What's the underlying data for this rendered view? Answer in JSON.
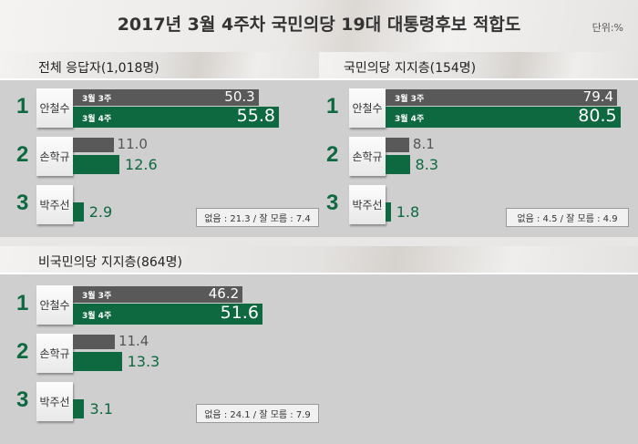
{
  "title": "2017년 3월 4주차 국민의당 19대 대통령후보 적합도",
  "unit": "단위:%",
  "chart_data": [
    {
      "type": "bar",
      "title": "전체 응답자(1,018명)",
      "series_names": [
        "3월 3주",
        "3월 4주"
      ],
      "rows": [
        {
          "rank": "1",
          "name": "안철수",
          "prev": "50.3",
          "curr": "55.8"
        },
        {
          "rank": "2",
          "name": "손학규",
          "prev": "11.0",
          "curr": "12.6"
        },
        {
          "rank": "3",
          "name": "박주선",
          "prev": null,
          "curr": "2.9"
        }
      ],
      "note": "없음 : 21.3 / 잘 모름 : 7.4"
    },
    {
      "type": "bar",
      "title": "국민의당 지지층(154명)",
      "series_names": [
        "3월 3주",
        "3월 4주"
      ],
      "rows": [
        {
          "rank": "1",
          "name": "안철수",
          "prev": "79.4",
          "curr": "80.5"
        },
        {
          "rank": "2",
          "name": "손학규",
          "prev": "8.1",
          "curr": "8.3"
        },
        {
          "rank": "3",
          "name": "박주선",
          "prev": null,
          "curr": "1.8"
        }
      ],
      "note": "없음 : 4.5 / 잘 모름 : 4.9"
    },
    {
      "type": "bar",
      "title": "비국민의당 지지층(864명)",
      "series_names": [
        "3월 3주",
        "3월 4주"
      ],
      "rows": [
        {
          "rank": "1",
          "name": "안철수",
          "prev": "46.2",
          "curr": "51.6"
        },
        {
          "rank": "2",
          "name": "손학규",
          "prev": "11.4",
          "curr": "13.3"
        },
        {
          "rank": "3",
          "name": "박주선",
          "prev": null,
          "curr": "3.1"
        }
      ],
      "note": "없음 : 24.1 / 잘 모름 : 7.9"
    }
  ],
  "colors": {
    "prev": "#595959",
    "curr": "#0e6840"
  }
}
